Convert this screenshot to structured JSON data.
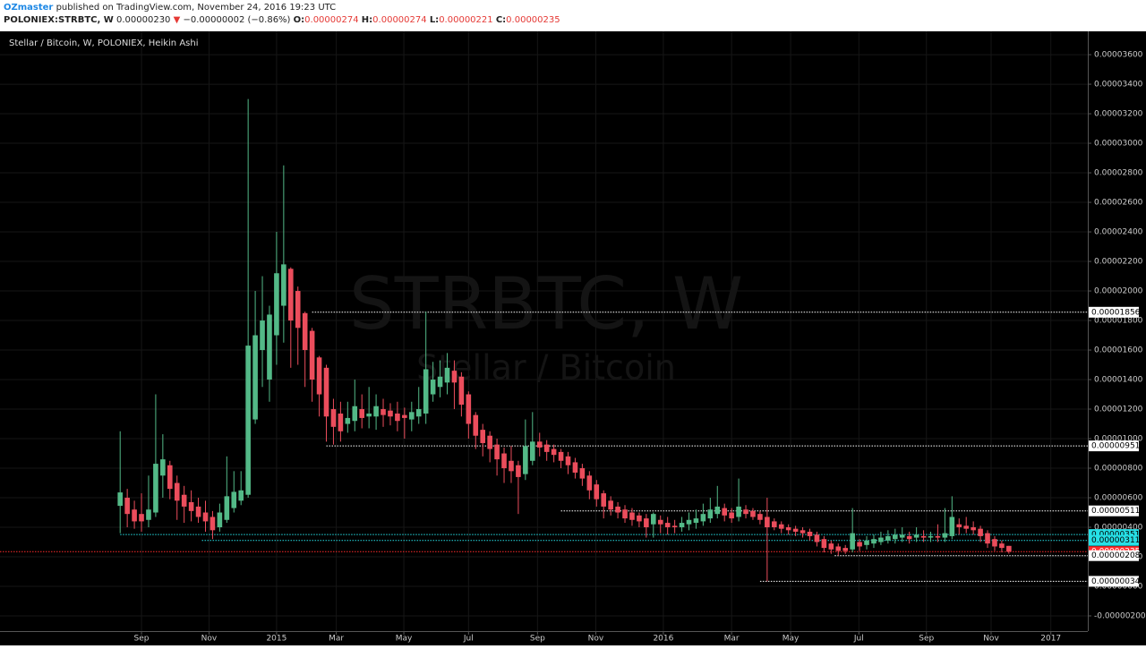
{
  "header": {
    "author": "OZmaster",
    "published": "published on TradingView.com, November 24, 2016 19:23 UTC",
    "symbol": "POLONIEX:STRBTC, W",
    "price": "0.00000230",
    "change": "−0.00000002 (−0.86%)",
    "o_label": "O:",
    "o": "0.00000274",
    "h_label": "H:",
    "h": "0.00000274",
    "l_label": "L:",
    "l": "0.00000221",
    "c_label": "C:",
    "c": "0.00000235"
  },
  "chart_data": {
    "type": "candlestick",
    "title": "Stellar / Bitcoin, W, POLONIEX, Heikin Ashi",
    "watermark": "STRBTC, W",
    "watermark_subtitle": "Stellar / Bitcoin",
    "up_color": "#53b987",
    "down_color": "#eb4d5c",
    "grid": true,
    "open": [
      5.45e-06,
      6e-06,
      5.2e-06,
      4.9e-06,
      4.5e-06,
      5e-06,
      7.5e-06,
      8.2e-06,
      7e-06,
      6.2e-06,
      5.7e-06,
      5.4e-06,
      5e-06,
      4.7e-06,
      4e-06,
      4.5e-06,
      5.3e-06,
      5.8e-06,
      6.2e-06,
      1.13e-05,
      1.6e-05,
      1.4e-05,
      1.7e-05,
      1.9e-05,
      2.15e-05,
      2e-05,
      1.85e-05,
      1.73e-05,
      1.55e-05,
      1.48e-05,
      1.2e-05,
      1.17e-05,
      1.1e-05,
      1.12e-05,
      1.2e-05,
      1.15e-05,
      1.15e-05,
      1.2e-05,
      1.19e-05,
      1.17e-05,
      1.16e-05,
      1.13e-05,
      1.15e-05,
      1.17e-05,
      1.3e-05,
      1.35e-05,
      1.38e-05,
      1.46e-05,
      1.42e-05,
      1.3e-05,
      1.16e-05,
      1.06e-05,
      1.02e-05,
      9.6e-06,
      9e-06,
      8.5e-06,
      8.2e-06,
      7.6e-06,
      8.5e-06,
      9.8e-06,
      9.6e-06,
      9.3e-06,
      9.1e-06,
      8.8e-06,
      8.4e-06,
      8e-06,
      7.5e-06,
      6.9e-06,
      6.3e-06,
      5.8e-06,
      5.4e-06,
      5.2e-06,
      5e-06,
      4.8e-06,
      4.6e-06,
      4.2e-06,
      4.5e-06,
      4.3e-06,
      4.1e-06,
      4e-06,
      4.2e-06,
      4.3e-06,
      4.4e-06,
      4.6e-06,
      4.9e-06,
      5.3e-06,
      5e-06,
      4.7e-06,
      5.2e-06,
      5.1e-06,
      4.9e-06,
      4.7e-06,
      4.4e-06,
      4.2e-06,
      4e-06,
      3.9e-06,
      3.8e-06,
      3.7e-06,
      3.5e-06,
      3.2e-06,
      2.9e-06,
      2.7e-06,
      2.6e-06,
      2.5e-06,
      3e-06,
      2.8e-06,
      2.9e-06,
      3e-06,
      3.1e-06,
      3.2e-06,
      3.3e-06,
      3.4e-06,
      3.3e-06,
      3.4e-06,
      3.3e-06,
      3.4e-06,
      3.3e-06,
      3.4e-06,
      4.2e-06,
      4.1e-06,
      4e-06,
      3.9e-06,
      3.6e-06,
      3.2e-06,
      2.9e-06,
      2.74e-06
    ],
    "high": [
      1.05e-05,
      6.6e-06,
      5.8e-06,
      6.3e-06,
      7.5e-06,
      1.3e-05,
      1.03e-05,
      8.5e-06,
      7.5e-06,
      6.8e-06,
      6.5e-06,
      6e-06,
      5.8e-06,
      5.1e-06,
      5.6e-06,
      8.8e-06,
      7.8e-06,
      7.8e-06,
      3.3e-05,
      2e-05,
      2.1e-05,
      1.9e-05,
      2.4e-05,
      2.85e-05,
      2.16e-05,
      2.03e-05,
      1.86e-05,
      1.75e-05,
      1.56e-05,
      1.5e-05,
      1.27e-05,
      1.25e-05,
      1.25e-05,
      1.4e-05,
      1.3e-05,
      1.35e-05,
      1.3e-05,
      1.27e-05,
      1.24e-05,
      1.25e-05,
      1.21e-05,
      1.25e-05,
      1.35e-05,
      1.86e-05,
      1.52e-05,
      1.53e-05,
      1.58e-05,
      1.53e-05,
      1.45e-05,
      1.32e-05,
      1.18e-05,
      1.1e-05,
      1.05e-05,
      1e-05,
      9.4e-06,
      9.5e-06,
      8.5e-06,
      1.13e-05,
      1.18e-05,
      1.04e-05,
      9.9e-06,
      9.6e-06,
      9.3e-06,
      9.1e-06,
      8.7e-06,
      8.3e-06,
      7.8e-06,
      7.2e-06,
      6.5e-06,
      6.1e-06,
      5.7e-06,
      5.5e-06,
      5.3e-06,
      5e-06,
      4.9e-06,
      5e-06,
      4.8e-06,
      4.7e-06,
      4.5e-06,
      4.7e-06,
      5e-06,
      5.2e-06,
      5.6e-06,
      6e-06,
      6.8e-06,
      5.6e-06,
      5.3e-06,
      7.3e-06,
      5.5e-06,
      5.3e-06,
      5.1e-06,
      6e-06,
      4.6e-06,
      4.4e-06,
      4.2e-06,
      4.1e-06,
      4e-06,
      3.9e-06,
      3.7e-06,
      3.4e-06,
      3.1e-06,
      2.9e-06,
      2.8e-06,
      5.3e-06,
      3.2e-06,
      3.4e-06,
      3.5e-06,
      3.7e-06,
      3.8e-06,
      3.9e-06,
      4e-06,
      3.7e-06,
      4e-06,
      3.8e-06,
      3.7e-06,
      4.2e-06,
      5.3e-06,
      6.1e-06,
      4.6e-06,
      4.7e-06,
      4.4e-06,
      4.1e-06,
      3.8e-06,
      3.4e-06,
      3.1e-06,
      2.74e-06
    ],
    "low": [
      3.6e-06,
      4e-06,
      3.9e-06,
      3.7e-06,
      4e-06,
      4.7e-06,
      6e-06,
      5.9e-06,
      4.5e-06,
      4.3e-06,
      4.4e-06,
      4.3e-06,
      3.7e-06,
      3.2e-06,
      3.7e-06,
      4.3e-06,
      5e-06,
      5.5e-06,
      6e-06,
      1.1e-05,
      1.35e-05,
      1.25e-05,
      1.5e-05,
      1.65e-05,
      1.48e-05,
      1.5e-05,
      1.35e-05,
      1.25e-05,
      1.15e-05,
      9.8e-06,
      9.6e-06,
      9.8e-06,
      1.04e-05,
      1.05e-05,
      1.07e-05,
      1.07e-05,
      1.06e-05,
      1.08e-05,
      1.09e-05,
      1.05e-05,
      1e-05,
      1.05e-05,
      1.1e-05,
      1.1e-05,
      1.25e-05,
      1.28e-05,
      1.3e-05,
      1.2e-05,
      1.15e-05,
      1e-05,
      9.3e-06,
      8.8e-06,
      8.4e-06,
      7.5e-06,
      7e-06,
      7e-06,
      4.9e-06,
      7.2e-06,
      8.2e-06,
      8.8e-06,
      8.5e-06,
      8.4e-06,
      8e-06,
      7.6e-06,
      7.3e-06,
      6.8e-06,
      5.9e-06,
      5.4e-06,
      4.6e-06,
      4.8e-06,
      4.6e-06,
      4.3e-06,
      4.1e-06,
      4e-06,
      3.3e-06,
      3.3e-06,
      3.6e-06,
      3.5e-06,
      3.6e-06,
      3.7e-06,
      3.8e-06,
      3.9e-06,
      4.1e-06,
      4.3e-06,
      4.6e-06,
      4.4e-06,
      4.3e-06,
      4.4e-06,
      4.6e-06,
      4.5e-06,
      4.2e-06,
      3.4e-07,
      3.8e-06,
      3.6e-06,
      3.5e-06,
      3.4e-06,
      3.3e-06,
      3.1e-06,
      2.7e-06,
      2.3e-06,
      2.2e-06,
      2.08e-06,
      2.2e-06,
      2.3e-06,
      2.4e-06,
      2.5e-06,
      2.6e-06,
      2.8e-06,
      2.9e-06,
      2.9e-06,
      3e-06,
      2.9e-06,
      3e-06,
      3e-06,
      3e-06,
      3e-06,
      3e-06,
      3.2e-06,
      3.5e-06,
      3.6e-06,
      3.5e-06,
      3e-06,
      2.6e-06,
      2.4e-06,
      2.3e-06,
      2.21e-06
    ],
    "close": [
      6.36e-06,
      4.9e-06,
      4.4e-06,
      4.4e-06,
      5.2e-06,
      8.3e-06,
      8.6e-06,
      6.6e-06,
      5.8e-06,
      5.4e-06,
      5.1e-06,
      4.7e-06,
      4.4e-06,
      3.8e-06,
      5e-06,
      6.1e-06,
      6.4e-06,
      6.5e-06,
      1.63e-05,
      1.7e-05,
      1.8e-05,
      1.84e-05,
      2.12e-05,
      2.18e-05,
      1.8e-05,
      1.75e-05,
      1.6e-05,
      1.4e-05,
      1.3e-05,
      1.15e-05,
      1.08e-05,
      1.05e-05,
      1.14e-05,
      1.22e-05,
      1.14e-05,
      1.17e-05,
      1.22e-05,
      1.16e-05,
      1.15e-05,
      1.12e-05,
      1.14e-05,
      1.18e-05,
      1.2e-05,
      1.47e-05,
      1.4e-05,
      1.42e-05,
      1.48e-05,
      1.38e-05,
      1.23e-05,
      1.1e-05,
      1.02e-05,
      9.7e-06,
      9.3e-06,
      8.6e-06,
      8e-06,
      7.8e-06,
      7.4e-06,
      9.5e-06,
      9.8e-06,
      9.4e-06,
      9.1e-06,
      8.9e-06,
      8.5e-06,
      8.2e-06,
      7.7e-06,
      7.3e-06,
      6.5e-06,
      5.9e-06,
      5.4e-06,
      5.2e-06,
      5e-06,
      4.6e-06,
      4.5e-06,
      4.4e-06,
      4e-06,
      4.9e-06,
      4.2e-06,
      4e-06,
      4e-06,
      4.3e-06,
      4.5e-06,
      4.6e-06,
      4.9e-06,
      5.2e-06,
      5.4e-06,
      4.8e-06,
      4.6e-06,
      5.4e-06,
      4.9e-06,
      4.7e-06,
      4.5e-06,
      4e-06,
      4e-06,
      3.9e-06,
      3.8e-06,
      3.7e-06,
      3.6e-06,
      3.4e-06,
      3e-06,
      2.6e-06,
      2.5e-06,
      2.4e-06,
      2.4e-06,
      3.6e-06,
      2.7e-06,
      3.1e-06,
      3.2e-06,
      3.3e-06,
      3.4e-06,
      3.5e-06,
      3.5e-06,
      3.2e-06,
      3.5e-06,
      3.3e-06,
      3.4e-06,
      3.3e-06,
      3.6e-06,
      4.7e-06,
      4e-06,
      3.9e-06,
      3.8e-06,
      3.4e-06,
      2.9e-06,
      2.7e-06,
      2.6e-06,
      2.35e-06
    ],
    "xlim": [
      -16.9,
      136.1
    ],
    "xticks": [
      {
        "value": 3.0,
        "label": "Sep"
      },
      {
        "value": 12.5,
        "label": "Nov"
      },
      {
        "value": 22.0,
        "label": "2015"
      },
      {
        "value": 30.4,
        "label": "Mar"
      },
      {
        "value": 39.9,
        "label": "May"
      },
      {
        "value": 49.0,
        "label": "Jul"
      },
      {
        "value": 58.7,
        "label": "Sep"
      },
      {
        "value": 66.9,
        "label": "Nov"
      },
      {
        "value": 76.4,
        "label": "2016"
      },
      {
        "value": 86.0,
        "label": "Mar"
      },
      {
        "value": 94.3,
        "label": "May"
      },
      {
        "value": 103.9,
        "label": "Jul"
      },
      {
        "value": 113.4,
        "label": "Sep"
      },
      {
        "value": 122.5,
        "label": "Nov"
      },
      {
        "value": 130.9,
        "label": "2017"
      }
    ],
    "ylim": [
      -3.03e-06,
      3.758e-05
    ],
    "yticks": [
      {
        "value": -2e-06,
        "label": "-0.00000200"
      },
      {
        "value": 0,
        "label": "0.00000000"
      },
      {
        "value": 2e-06,
        "label": "0.00000200"
      },
      {
        "value": 4e-06,
        "label": "0.00000400"
      },
      {
        "value": 6e-06,
        "label": "0.00000600"
      },
      {
        "value": 8e-06,
        "label": "0.00000800"
      },
      {
        "value": 1e-05,
        "label": "0.00001000"
      },
      {
        "value": 1.2e-05,
        "label": "0.00001200"
      },
      {
        "value": 1.4e-05,
        "label": "0.00001400"
      },
      {
        "value": 1.6e-05,
        "label": "0.00001600"
      },
      {
        "value": 1.8e-05,
        "label": "0.00001800"
      },
      {
        "value": 2e-05,
        "label": "0.00002000"
      },
      {
        "value": 2.2e-05,
        "label": "0.00002200"
      },
      {
        "value": 2.4e-05,
        "label": "0.00002400"
      },
      {
        "value": 2.6e-05,
        "label": "0.00002600"
      },
      {
        "value": 2.8e-05,
        "label": "0.00002800"
      },
      {
        "value": 3e-05,
        "label": "0.00003000"
      },
      {
        "value": 3.2e-05,
        "label": "0.00003200"
      },
      {
        "value": 3.4e-05,
        "label": "0.00003400"
      },
      {
        "value": 3.6e-05,
        "label": "0.00003600"
      }
    ],
    "hlines": [
      {
        "value": 1.856e-05,
        "label": "0.00001856",
        "color": "#ffffff",
        "start": 27
      },
      {
        "value": 9.51e-06,
        "label": "0.00000951",
        "color": "#ffffff",
        "start": 29
      },
      {
        "value": 5.11e-06,
        "label": "0.00000511",
        "color": "#ffffff",
        "start": 62
      },
      {
        "value": 3.51e-06,
        "label": "0.00000351",
        "color": "#26e0e6",
        "start": 0
      },
      {
        "value": 3.11e-06,
        "label": "0.00000311",
        "color": "#26e0e6",
        "start": 11.5
      },
      {
        "value": 2.35e-06,
        "label": "0.00000235",
        "color": "#ff2a2a",
        "start": -16.9
      },
      {
        "value": 2.08e-06,
        "label": "0.00000208",
        "color": "#ffffff",
        "start": 100.5
      },
      {
        "value": 3.4e-07,
        "label": "0.00000034",
        "color": "#ffffff",
        "start": 90
      }
    ]
  }
}
